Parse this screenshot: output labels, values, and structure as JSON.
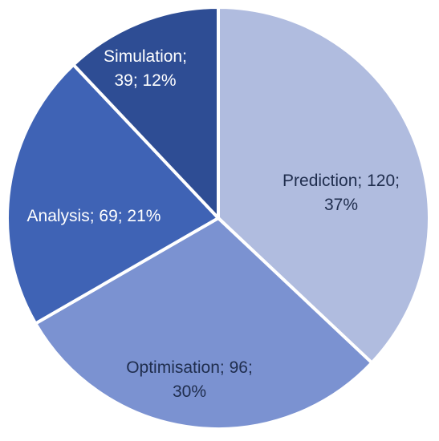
{
  "chart_data": {
    "type": "pie",
    "title": "",
    "slices": [
      {
        "label": "Prediction",
        "value": 120,
        "percent": 37,
        "color": "#b0bcdf",
        "text_color": "#1f2d4d",
        "lines": [
          "Prediction; 120;",
          "37%"
        ]
      },
      {
        "label": "Optimisation",
        "value": 96,
        "percent": 30,
        "color": "#7b92d1",
        "text_color": "#1f2d4d",
        "lines": [
          "Optimisation; 96;",
          "30%"
        ]
      },
      {
        "label": "Analysis",
        "value": 69,
        "percent": 21,
        "color": "#3f63b5",
        "text_color": "#ffffff",
        "lines": [
          "Analysis; 69; 21%"
        ]
      },
      {
        "label": "Simulation",
        "value": 39,
        "percent": 12,
        "color": "#2e4d94",
        "text_color": "#ffffff",
        "lines": [
          "Simulation;",
          "39; 12%"
        ]
      }
    ]
  }
}
